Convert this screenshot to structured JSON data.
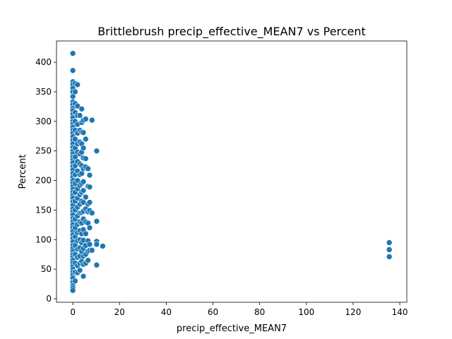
{
  "chart_data": {
    "type": "scatter",
    "title": "Brittlebrush precip_effective_MEAN7 vs Percent",
    "xlabel": "precip_effective_MEAN7",
    "ylabel": "Percent",
    "xlim": [
      -7,
      143
    ],
    "ylim": [
      -6,
      436
    ],
    "xticks": [
      0,
      20,
      40,
      60,
      80,
      100,
      120,
      140
    ],
    "yticks": [
      0,
      50,
      100,
      150,
      200,
      250,
      300,
      350,
      400
    ],
    "grid": false,
    "legend": "none",
    "color": "#1f77b4",
    "points": [
      [
        0,
        415
      ],
      [
        0,
        386
      ],
      [
        0,
        367
      ],
      [
        0,
        362
      ],
      [
        0,
        356
      ],
      [
        0,
        350
      ],
      [
        0,
        342
      ],
      [
        0,
        333
      ],
      [
        0,
        328
      ],
      [
        0,
        322
      ],
      [
        0,
        318
      ],
      [
        0,
        312
      ],
      [
        0,
        306
      ],
      [
        0,
        300
      ],
      [
        0,
        295
      ],
      [
        0,
        290
      ],
      [
        0,
        285
      ],
      [
        0,
        280
      ],
      [
        0,
        274
      ],
      [
        0,
        268
      ],
      [
        0,
        262
      ],
      [
        0,
        256
      ],
      [
        0,
        250
      ],
      [
        0,
        245
      ],
      [
        0,
        240
      ],
      [
        0,
        235
      ],
      [
        0,
        230
      ],
      [
        0,
        224
      ],
      [
        0,
        218
      ],
      [
        0,
        212
      ],
      [
        0,
        206
      ],
      [
        0,
        200
      ],
      [
        0,
        195
      ],
      [
        0,
        190
      ],
      [
        0,
        185
      ],
      [
        0,
        180
      ],
      [
        0,
        175
      ],
      [
        0,
        170
      ],
      [
        0,
        164
      ],
      [
        0,
        158
      ],
      [
        0,
        152
      ],
      [
        0,
        147
      ],
      [
        0,
        142
      ],
      [
        0,
        136
      ],
      [
        0,
        130
      ],
      [
        0,
        125
      ],
      [
        0,
        120
      ],
      [
        0,
        114
      ],
      [
        0,
        108
      ],
      [
        0,
        102
      ],
      [
        0,
        96
      ],
      [
        0,
        90
      ],
      [
        0,
        85
      ],
      [
        0,
        80
      ],
      [
        0,
        75
      ],
      [
        0,
        70
      ],
      [
        0,
        65
      ],
      [
        0,
        60
      ],
      [
        0,
        55
      ],
      [
        0,
        50
      ],
      [
        0,
        45
      ],
      [
        0,
        40
      ],
      [
        0,
        35
      ],
      [
        0,
        28
      ],
      [
        0,
        22
      ],
      [
        0,
        18
      ],
      [
        0,
        14
      ],
      [
        1,
        364
      ],
      [
        1,
        350
      ],
      [
        1,
        330
      ],
      [
        1,
        315
      ],
      [
        1,
        300
      ],
      [
        1,
        285
      ],
      [
        1,
        270
      ],
      [
        1,
        255
      ],
      [
        1,
        240
      ],
      [
        1,
        225
      ],
      [
        1,
        210
      ],
      [
        1,
        195
      ],
      [
        1,
        180
      ],
      [
        1,
        165
      ],
      [
        1,
        150
      ],
      [
        1,
        135
      ],
      [
        1,
        120
      ],
      [
        1,
        105
      ],
      [
        1,
        90
      ],
      [
        1,
        75
      ],
      [
        1,
        60
      ],
      [
        1,
        45
      ],
      [
        1,
        30
      ],
      [
        2,
        362
      ],
      [
        2,
        326
      ],
      [
        2,
        310
      ],
      [
        2,
        295
      ],
      [
        2,
        280
      ],
      [
        2,
        262
      ],
      [
        2,
        248
      ],
      [
        2,
        232
      ],
      [
        2,
        216
      ],
      [
        2,
        200
      ],
      [
        2,
        186
      ],
      [
        2,
        170
      ],
      [
        2,
        155
      ],
      [
        2,
        140
      ],
      [
        2,
        126
      ],
      [
        2,
        112
      ],
      [
        2,
        98
      ],
      [
        2,
        84
      ],
      [
        2,
        70
      ],
      [
        2,
        56
      ],
      [
        2,
        44
      ],
      [
        3,
        310
      ],
      [
        3,
        285
      ],
      [
        3,
        265
      ],
      [
        3,
        245
      ],
      [
        3,
        228
      ],
      [
        3,
        210
      ],
      [
        3,
        192
      ],
      [
        3,
        176
      ],
      [
        3,
        160
      ],
      [
        3,
        145
      ],
      [
        3,
        130
      ],
      [
        3,
        115
      ],
      [
        3,
        100
      ],
      [
        3,
        86
      ],
      [
        3,
        72
      ],
      [
        3,
        60
      ],
      [
        3,
        48
      ],
      [
        3.8,
        321
      ],
      [
        3.8,
        298
      ],
      [
        3.8,
        282
      ],
      [
        3.8,
        262
      ],
      [
        3.8,
        248
      ],
      [
        3.8,
        225
      ],
      [
        3.8,
        212
      ],
      [
        3.8,
        195
      ],
      [
        3.8,
        180
      ],
      [
        3.8,
        165
      ],
      [
        3.8,
        146
      ],
      [
        3.8,
        128
      ],
      [
        3.8,
        110
      ],
      [
        3.8,
        95
      ],
      [
        3.8,
        80
      ],
      [
        3.8,
        63
      ],
      [
        4.5,
        302
      ],
      [
        4.5,
        281
      ],
      [
        4.5,
        255
      ],
      [
        4.5,
        238
      ],
      [
        4.5,
        220
      ],
      [
        4.5,
        198
      ],
      [
        4.5,
        183
      ],
      [
        4.5,
        163
      ],
      [
        4.5,
        148
      ],
      [
        4.5,
        135
      ],
      [
        4.5,
        117
      ],
      [
        4.5,
        99
      ],
      [
        4.5,
        85
      ],
      [
        4.5,
        72
      ],
      [
        4.5,
        58
      ],
      [
        4.5,
        38
      ],
      [
        5.5,
        304
      ],
      [
        5.5,
        270
      ],
      [
        5.5,
        237
      ],
      [
        5.5,
        223
      ],
      [
        5.5,
        172
      ],
      [
        5.5,
        152
      ],
      [
        5.5,
        130
      ],
      [
        5.5,
        110
      ],
      [
        5.5,
        90
      ],
      [
        5.5,
        75
      ],
      [
        5.5,
        60
      ],
      [
        6.5,
        220
      ],
      [
        6.5,
        190
      ],
      [
        6.5,
        160
      ],
      [
        6.5,
        147
      ],
      [
        6.5,
        128
      ],
      [
        6.5,
        98
      ],
      [
        6.5,
        80
      ],
      [
        6.5,
        65
      ],
      [
        7.2,
        209
      ],
      [
        7.2,
        189
      ],
      [
        7.2,
        163
      ],
      [
        7.2,
        149
      ],
      [
        7.2,
        120
      ],
      [
        7.2,
        92
      ],
      [
        7.2,
        82
      ],
      [
        8.2,
        302
      ],
      [
        8.2,
        145
      ],
      [
        8.2,
        82
      ],
      [
        10.2,
        250
      ],
      [
        10.2,
        131
      ],
      [
        10.2,
        97
      ],
      [
        10.2,
        92
      ],
      [
        10.2,
        57
      ],
      [
        12.8,
        89
      ],
      [
        135.5,
        95
      ],
      [
        135.5,
        83
      ],
      [
        135.5,
        71
      ]
    ]
  }
}
